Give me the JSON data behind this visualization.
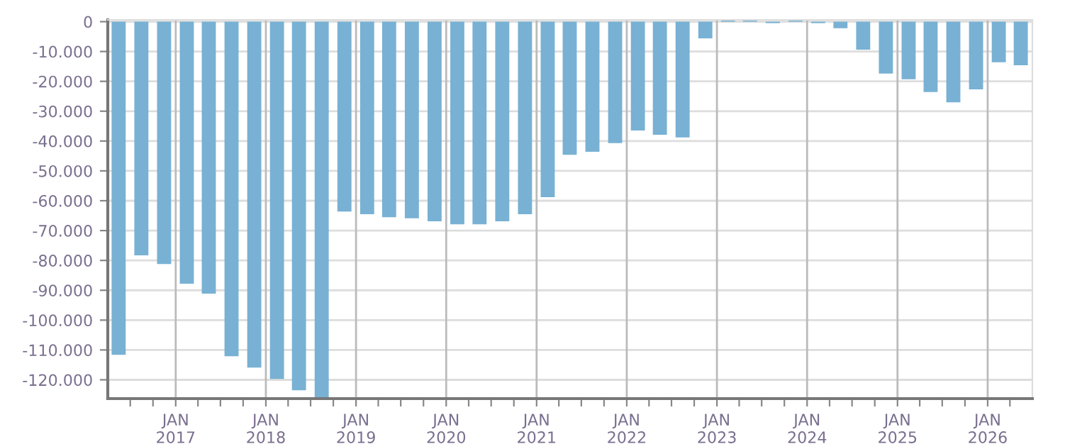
{
  "chart_data": {
    "type": "bar",
    "color": "#78b1d3",
    "x": [
      "2016-05-15",
      "2016-08-15",
      "2016-11-15",
      "2017-02-15",
      "2017-05-15",
      "2017-08-15",
      "2017-11-15",
      "2018-02-15",
      "2018-05-15",
      "2018-08-15",
      "2018-11-15",
      "2019-02-15",
      "2019-05-15",
      "2019-08-15",
      "2019-11-15",
      "2020-02-15",
      "2020-05-15",
      "2020-08-15",
      "2020-11-15",
      "2021-02-15",
      "2021-05-15",
      "2021-08-15",
      "2021-11-15",
      "2022-02-15",
      "2022-05-15",
      "2022-08-15",
      "2022-11-15",
      "2023-02-15",
      "2023-05-15",
      "2023-08-15",
      "2023-11-15",
      "2024-02-15",
      "2024-05-15",
      "2024-08-15",
      "2024-11-15",
      "2025-02-15",
      "2025-05-15",
      "2025-08-15",
      "2025-11-15",
      "2026-02-15",
      "2026-05-15"
    ],
    "values": [
      -111600,
      -78300,
      -81200,
      -87800,
      -91100,
      -112100,
      -115900,
      -119700,
      -123500,
      -126000,
      -63600,
      -64500,
      -65500,
      -65900,
      -66900,
      -67900,
      -67900,
      -66900,
      -64500,
      -58800,
      -44600,
      -43600,
      -40700,
      -36500,
      -37900,
      -38800,
      -5600,
      400,
      400,
      -500,
      400,
      -500,
      -2200,
      -9400,
      -17400,
      -19300,
      -23600,
      -27000,
      -22700,
      -13600,
      -14600
    ],
    "xlim": [
      "2016-04-01",
      "2026-07-01"
    ],
    "xticks": [
      {
        "value": "2016-07-01",
        "label": null
      },
      {
        "value": "2016-10-01",
        "label": null
      },
      {
        "value": "2017-01-01",
        "label": "JAN\n2017"
      },
      {
        "value": "2017-04-01",
        "label": null
      },
      {
        "value": "2017-07-01",
        "label": null
      },
      {
        "value": "2017-10-01",
        "label": null
      },
      {
        "value": "2018-01-01",
        "label": "JAN\n2018"
      },
      {
        "value": "2018-04-01",
        "label": null
      },
      {
        "value": "2018-07-01",
        "label": null
      },
      {
        "value": "2018-10-01",
        "label": null
      },
      {
        "value": "2019-01-01",
        "label": "JAN\n2019"
      },
      {
        "value": "2019-04-01",
        "label": null
      },
      {
        "value": "2019-07-01",
        "label": null
      },
      {
        "value": "2019-10-01",
        "label": null
      },
      {
        "value": "2020-01-01",
        "label": "JAN\n2020"
      },
      {
        "value": "2020-04-01",
        "label": null
      },
      {
        "value": "2020-07-01",
        "label": null
      },
      {
        "value": "2020-10-01",
        "label": null
      },
      {
        "value": "2021-01-01",
        "label": "JAN\n2021"
      },
      {
        "value": "2021-04-01",
        "label": null
      },
      {
        "value": "2021-07-01",
        "label": null
      },
      {
        "value": "2021-10-01",
        "label": null
      },
      {
        "value": "2022-01-01",
        "label": "JAN\n2022"
      },
      {
        "value": "2022-04-01",
        "label": null
      },
      {
        "value": "2022-07-01",
        "label": null
      },
      {
        "value": "2022-10-01",
        "label": null
      },
      {
        "value": "2023-01-01",
        "label": "JAN\n2023"
      },
      {
        "value": "2023-04-01",
        "label": null
      },
      {
        "value": "2023-07-01",
        "label": null
      },
      {
        "value": "2023-10-01",
        "label": null
      },
      {
        "value": "2024-01-01",
        "label": "JAN\n2024"
      },
      {
        "value": "2024-04-01",
        "label": null
      },
      {
        "value": "2024-07-01",
        "label": null
      },
      {
        "value": "2024-10-01",
        "label": null
      },
      {
        "value": "2025-01-01",
        "label": "JAN\n2025"
      },
      {
        "value": "2025-04-01",
        "label": null
      },
      {
        "value": "2025-07-01",
        "label": null
      },
      {
        "value": "2025-10-01",
        "label": null
      },
      {
        "value": "2026-01-01",
        "label": "JAN\n2026"
      },
      {
        "value": "2026-04-01",
        "label": null
      }
    ],
    "ylim": [
      -126300,
      600
    ],
    "yticks": [
      0,
      {
        "value": -10000,
        "label": "-10.000"
      },
      {
        "value": -20000,
        "label": "-20.000"
      },
      {
        "value": -30000,
        "label": "-30.000"
      },
      {
        "value": -40000,
        "label": "-40.000"
      },
      {
        "value": -50000,
        "label": "-50.000"
      },
      {
        "value": -60000,
        "label": "-60.000"
      },
      {
        "value": -70000,
        "label": "-70.000"
      },
      {
        "value": -80000,
        "label": "-80.000"
      },
      {
        "value": -90000,
        "label": "-90.000"
      },
      {
        "value": -100000,
        "label": "-100.000"
      },
      {
        "value": -110000,
        "label": "-110.000"
      },
      {
        "value": -120000,
        "label": "-120.000"
      }
    ],
    "grid": true
  }
}
